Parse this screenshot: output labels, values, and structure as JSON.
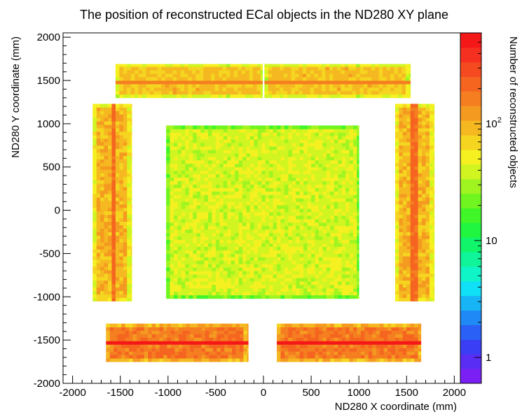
{
  "chart_data": {
    "type": "heatmap",
    "title": "The position of reconstructed ECal objects in the ND280 XY plane",
    "xlabel": "ND280 X coordinate (mm)",
    "ylabel": "ND280 Y coordinate (mm)",
    "zlabel": "Number of reconstructed objects",
    "xlim": [
      -2100,
      2100
    ],
    "ylim": [
      -2000,
      2050
    ],
    "x_ticks": [
      "-2000",
      "-1500",
      "-1000",
      "-500",
      "0",
      "500",
      "1000",
      "1500",
      "2000"
    ],
    "y_ticks": [
      "2000",
      "1500",
      "1000",
      "500",
      "0",
      "-500",
      "-1000",
      "-1500",
      "-2000"
    ],
    "z_scale": "log",
    "zlim": [
      0.6,
      600
    ],
    "z_ticks": [
      {
        "value": 1,
        "label": "1"
      },
      {
        "value": 10,
        "label": "10"
      },
      {
        "value": 100,
        "label": "10",
        "exp": "2"
      }
    ],
    "palette": [
      "#7b20f5",
      "#5a2df5",
      "#3a3ff5",
      "#2a60f5",
      "#1f8af5",
      "#17b5f5",
      "#10e0f5",
      "#10f5c8",
      "#10f59a",
      "#10f56a",
      "#20f540",
      "#40f528",
      "#70f520",
      "#a0f520",
      "#d0f520",
      "#f5f020",
      "#f5d520",
      "#f5b820",
      "#f59a20",
      "#f57e20",
      "#f56520",
      "#f54a20",
      "#f53020",
      "#f51818"
    ],
    "regions": [
      {
        "name": "top-left",
        "x": [
          -1550,
          -10
        ],
        "y": [
          1300,
          1690
        ],
        "base": 80,
        "line_axis": "h",
        "line_at": 1480,
        "line_val": 160
      },
      {
        "name": "top-right",
        "x": [
          10,
          1540
        ],
        "y": [
          1300,
          1690
        ],
        "base": 80,
        "line_axis": "h",
        "line_at": 1480,
        "line_val": 160
      },
      {
        "name": "left",
        "x": [
          -1790,
          -1380
        ],
        "y": [
          -1050,
          1230
        ],
        "base": 90,
        "line_axis": "v",
        "line_at": -1580,
        "line_val": 200
      },
      {
        "name": "right",
        "x": [
          1380,
          1790
        ],
        "y": [
          -1050,
          1230
        ],
        "base": 90,
        "line_axis": "v",
        "line_at": 1580,
        "line_val": 200
      },
      {
        "name": "central",
        "x": [
          -1020,
          1000
        ],
        "y": [
          -1020,
          980
        ],
        "base": 40,
        "line_axis": "",
        "line_at": 0,
        "line_val": 0
      },
      {
        "name": "bottom-left",
        "x": [
          -1650,
          -160
        ],
        "y": [
          -1750,
          -1310
        ],
        "base": 170,
        "line_axis": "h",
        "line_at": -1530,
        "line_val": 500
      },
      {
        "name": "bottom-right",
        "x": [
          140,
          1650
        ],
        "y": [
          -1750,
          -1310
        ],
        "base": 170,
        "line_axis": "h",
        "line_at": -1530,
        "line_val": 500
      }
    ]
  }
}
